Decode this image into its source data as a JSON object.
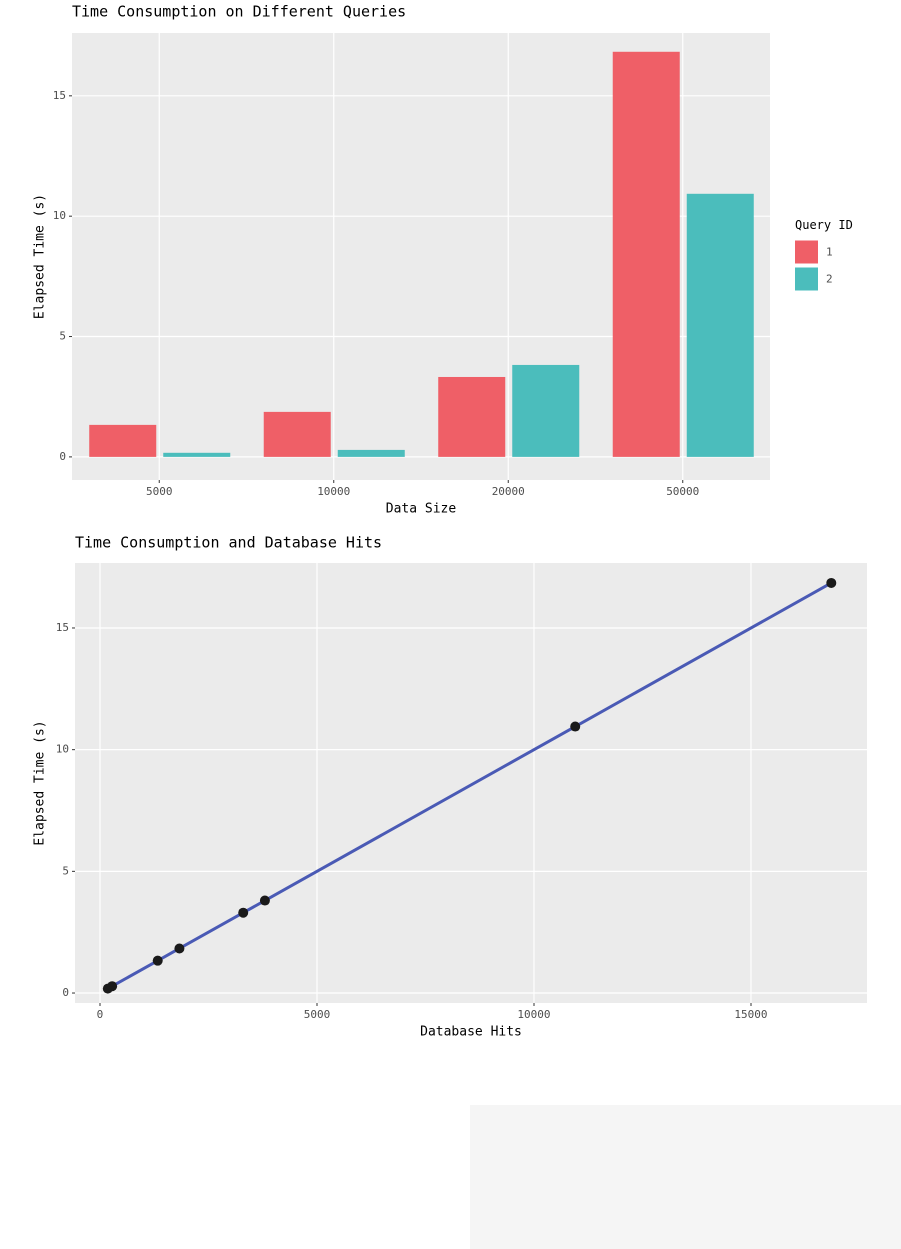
{
  "chart_data": [
    {
      "type": "bar",
      "title": "Time Consumption on Different Queries",
      "x_label": "Data Size",
      "y_label": "Elapsed Time (s)",
      "categories": [
        "5000",
        "10000",
        "20000",
        "50000"
      ],
      "series": [
        {
          "name": "1",
          "color": "#ef5f67",
          "values": [
            1.33,
            1.87,
            3.32,
            16.83
          ]
        },
        {
          "name": "2",
          "color": "#4bbdbc",
          "values": [
            0.17,
            0.29,
            3.82,
            10.93
          ]
        }
      ],
      "legend_title": "Query ID",
      "legend": "right",
      "ylim": [
        -0.96,
        17.61
      ],
      "yticks": [
        0,
        5,
        10,
        15
      ],
      "grid": true
    },
    {
      "type": "scatter",
      "title": "Time Consumption and Database Hits",
      "x_label": "Database Hits",
      "y_label": "Elapsed Time (s)",
      "x": [
        180,
        280,
        1330,
        1830,
        3300,
        3800,
        10950,
        16850
      ],
      "values": [
        0.18,
        0.28,
        1.33,
        1.83,
        3.3,
        3.8,
        10.95,
        16.85
      ],
      "color": "#1a1a1a",
      "line_color": "#4a5ab5",
      "xlim": [
        -576,
        17673
      ],
      "xticks": [
        0,
        5000,
        10000,
        15000
      ],
      "ylim": [
        -0.41,
        17.67
      ],
      "yticks": [
        0,
        5,
        10,
        15
      ],
      "grid": true
    }
  ]
}
